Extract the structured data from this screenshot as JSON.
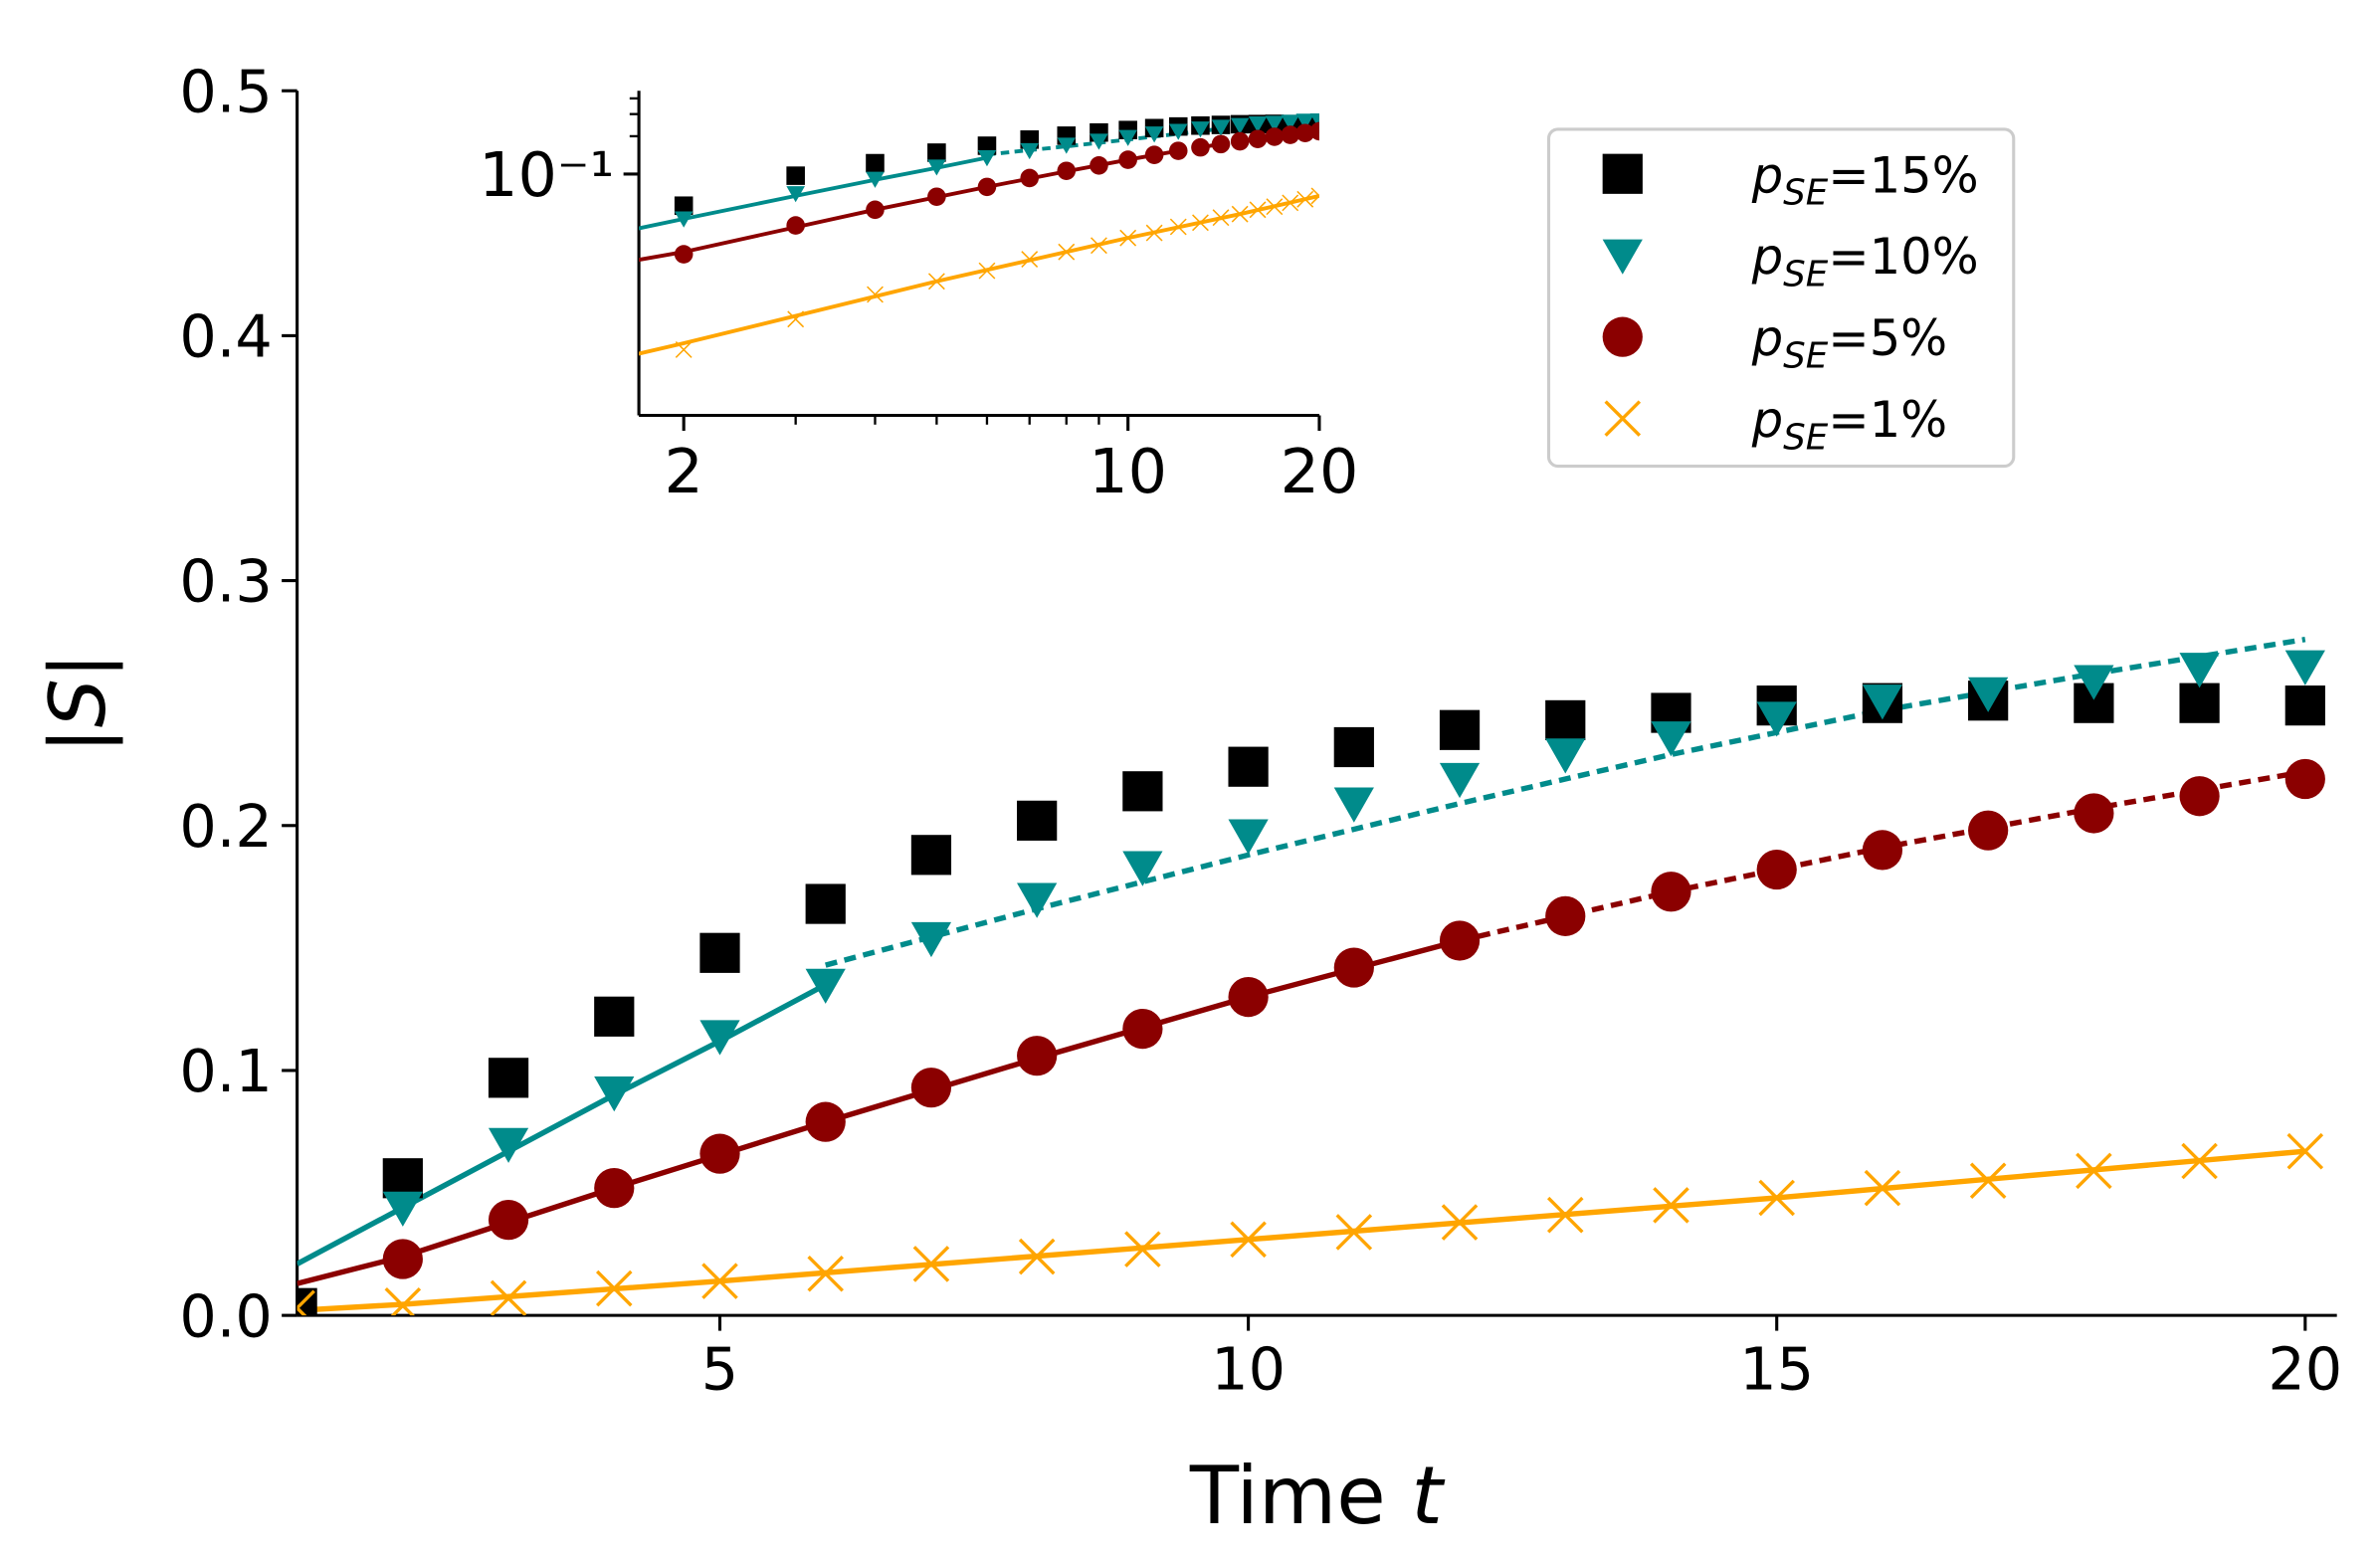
{
  "chart_data": {
    "type": "scatter",
    "xlabel": "Time t",
    "ylabel": "|S|",
    "x": [
      1,
      2,
      3,
      4,
      5,
      6,
      7,
      8,
      9,
      10,
      11,
      12,
      13,
      14,
      15,
      16,
      17,
      18,
      19,
      20
    ],
    "series": [
      {
        "name": "p_SE=15%",
        "color": "#000000",
        "marker": "square",
        "values": [
          0.003,
          0.056,
          0.097,
          0.122,
          0.148,
          0.168,
          0.188,
          0.202,
          0.214,
          0.224,
          0.232,
          0.239,
          0.243,
          0.246,
          0.249,
          0.25,
          0.251,
          0.25,
          0.25,
          0.249
        ]
      },
      {
        "name": "p_SE=10%",
        "color": "#008b8b",
        "marker": "triangle",
        "values": [
          null,
          0.044,
          0.07,
          0.091,
          0.114,
          0.135,
          0.154,
          0.17,
          0.183,
          0.196,
          0.209,
          0.219,
          0.229,
          0.236,
          0.244,
          0.251,
          0.254,
          0.259,
          0.264,
          0.265
        ]
      },
      {
        "name": "p_SE=5%",
        "color": "#8b0000",
        "marker": "circle",
        "values": [
          null,
          0.023,
          0.039,
          0.052,
          0.066,
          0.079,
          0.093,
          0.106,
          0.117,
          0.13,
          0.142,
          0.153,
          0.163,
          0.173,
          0.182,
          0.19,
          0.198,
          0.205,
          0.212,
          0.219
        ]
      },
      {
        "name": "p_SE=1%",
        "color": "#ffa500",
        "marker": "x",
        "values": [
          0.003,
          0.004,
          0.007,
          0.011,
          0.014,
          0.017,
          0.021,
          0.024,
          0.027,
          0.031,
          0.034,
          0.038,
          0.041,
          0.045,
          0.048,
          0.052,
          0.055,
          0.059,
          0.063,
          0.067
        ]
      }
    ],
    "fits": [
      {
        "color": "#008b8b",
        "dashed": false,
        "x": [
          1,
          2,
          3,
          4,
          5,
          6
        ],
        "values": [
          0.021,
          0.044,
          0.067,
          0.09,
          0.112,
          0.135
        ]
      },
      {
        "color": "#008b8b",
        "dashed": true,
        "x": [
          6,
          8,
          10,
          12,
          14,
          16,
          18,
          20
        ],
        "values": [
          0.143,
          0.166,
          0.188,
          0.209,
          0.229,
          0.247,
          0.262,
          0.276
        ]
      },
      {
        "color": "#8b0000",
        "dashed": false,
        "x": [
          1,
          2,
          4,
          6,
          8,
          10,
          12
        ],
        "values": [
          0.013,
          0.024,
          0.052,
          0.079,
          0.105,
          0.13,
          0.153
        ]
      },
      {
        "color": "#8b0000",
        "dashed": true,
        "x": [
          12,
          14,
          16,
          18,
          20
        ],
        "values": [
          0.153,
          0.173,
          0.191,
          0.207,
          0.222
        ]
      },
      {
        "color": "#ffa500",
        "dashed": false,
        "x": [
          1,
          2,
          5,
          10,
          15,
          20
        ],
        "values": [
          0.002,
          0.0045,
          0.014,
          0.031,
          0.048,
          0.067
        ]
      }
    ],
    "xlim": [
      1,
      20.3
    ],
    "ylim": [
      0,
      0.5
    ],
    "xticks": [
      5,
      10,
      15,
      20
    ],
    "yticks": [
      {
        "value": 0,
        "label": "0.0"
      },
      0.1,
      0.2,
      0.3,
      0.4,
      0.5
    ],
    "legend": "upper right",
    "inset": {
      "xscale": "log",
      "yscale": "log",
      "xlim": [
        1.7,
        20
      ],
      "ylim": [
        0.0012,
        0.46
      ],
      "xticks": [
        2,
        10,
        20
      ],
      "xminorticks": [
        3,
        4,
        5,
        6,
        7,
        8,
        9
      ],
      "yticks": [
        {
          "value": 0.1,
          "label": "10⁻¹"
        }
      ],
      "yminorticks": [
        0.2,
        0.3,
        0.4
      ]
    }
  }
}
